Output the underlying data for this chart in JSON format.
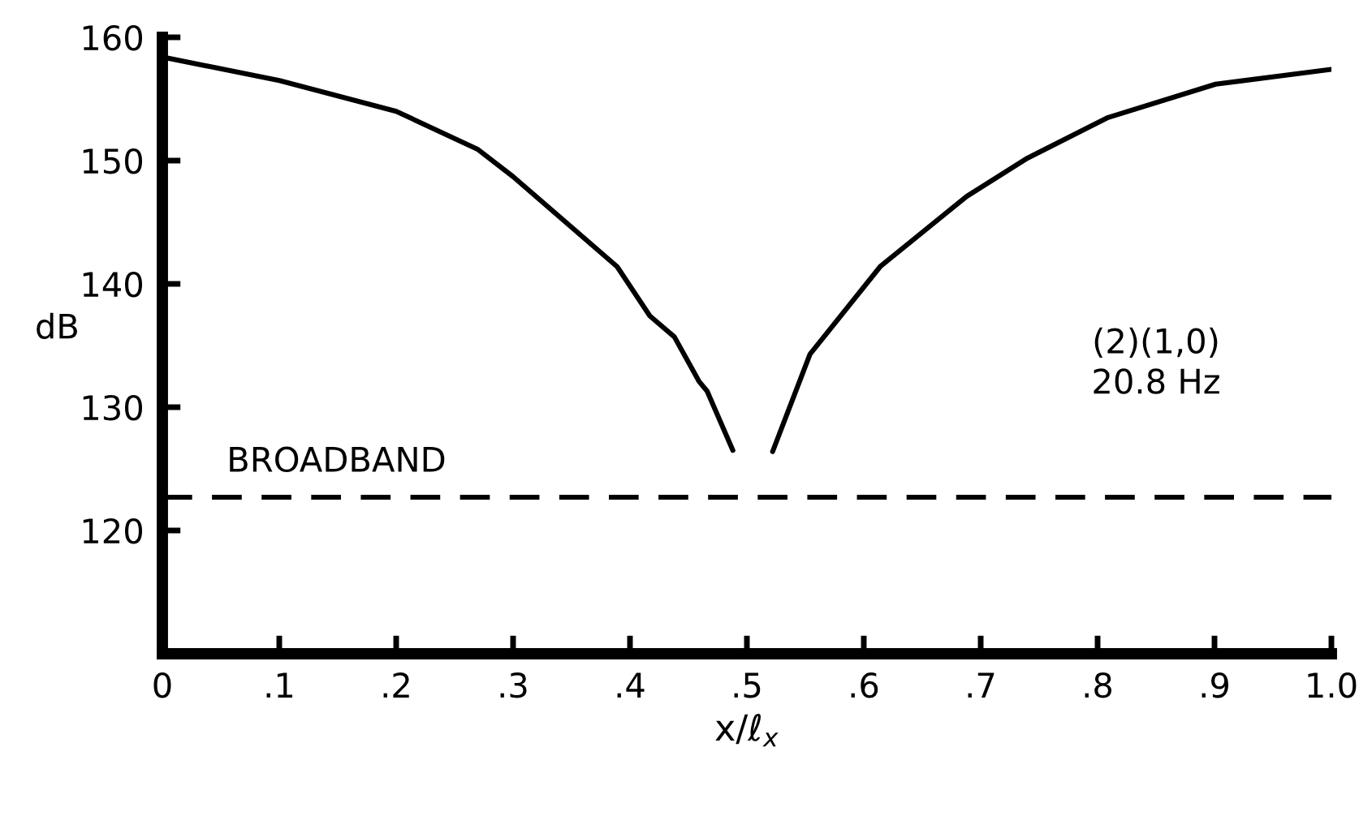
{
  "chart_data": {
    "type": "line",
    "xlabel": "x/ℓ$_{x}$",
    "ylabel": "dB",
    "series": [
      {
        "color": "#000000",
        "x": [
          0,
          0.1,
          0.2,
          0.27,
          0.3,
          0.389,
          0.417,
          0.438,
          0.459,
          0.466,
          0.488
        ],
        "values": [
          158.4,
          156.5,
          154,
          150.9,
          148.7,
          141.4,
          137.4,
          135.7,
          132.1,
          131.3,
          126.5
        ]
      },
      {
        "color": "#000000",
        "x": [
          0.522,
          0.554,
          0.614,
          0.688,
          0.74,
          0.809,
          0.901,
          1.0
        ],
        "values": [
          126.4,
          134.3,
          141.4,
          147.1,
          150.2,
          153.5,
          156.2,
          157.4
        ]
      }
    ],
    "xlim": [
      0,
      1.0
    ],
    "ylim": [
      110,
      160
    ],
    "xticks": [
      0,
      {
        "value": 0.1,
        "label": ".1"
      },
      {
        "value": 0.2,
        "label": ".2"
      },
      {
        "value": 0.3,
        "label": ".3"
      },
      {
        "value": 0.4,
        "label": ".4"
      },
      {
        "value": 0.5,
        "label": ".5"
      },
      {
        "value": 0.6,
        "label": ".6"
      },
      {
        "value": 0.7,
        "label": ".7"
      },
      {
        "value": 0.8,
        "label": ".8"
      },
      {
        "value": 0.9,
        "label": ".9"
      },
      {
        "value": 1.0,
        "label": "1.0"
      }
    ],
    "yticks": [
      120,
      130,
      140,
      150,
      160
    ],
    "ref_lines": [
      {
        "axis": "y",
        "value": 122.7,
        "label": "BROADBAND",
        "color": "#000000",
        "line_style": "dashed"
      }
    ],
    "annotations": [
      "(2)(1,0)\n20.8 Hz"
    ],
    "grid": false,
    "legend": false,
    "line_style": "solid",
    "marker": "none"
  }
}
